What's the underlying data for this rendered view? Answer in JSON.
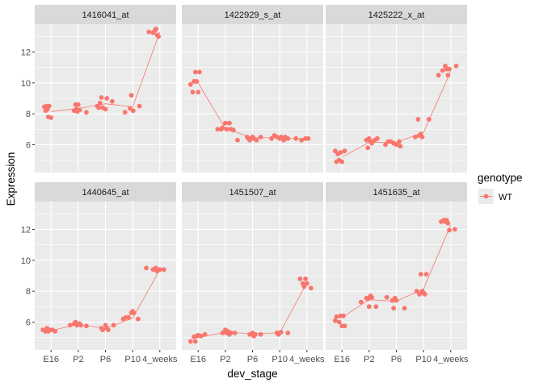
{
  "chart_data": {
    "type": "scatter",
    "xlabel": "dev_stage",
    "ylabel": "Expression",
    "categories": [
      "E16",
      "P2",
      "P6",
      "P10",
      "4_weeks"
    ],
    "ylim": [
      4.2,
      13.8
    ],
    "yticks": [
      6,
      8,
      10,
      12
    ],
    "grid": true,
    "legend": {
      "title": "genotype",
      "position": "right",
      "entries": [
        "WT"
      ]
    },
    "colors": {
      "series": "#F8766D",
      "panel_bg": "#EBEBEB",
      "strip_bg": "#D9D9D9",
      "grid": "#FFFFFF"
    },
    "series": [
      {
        "name": "WT"
      }
    ],
    "facets": [
      {
        "probe": "1416041_at",
        "means": [
          8.15,
          8.35,
          8.65,
          8.45,
          13.3
        ],
        "points": [
          [
            0.75,
            8.45
          ],
          [
            0.8,
            8.2
          ],
          [
            0.83,
            8.5
          ],
          [
            0.87,
            8.3
          ],
          [
            0.9,
            7.8
          ],
          [
            0.93,
            8.5
          ],
          [
            1.0,
            7.75
          ],
          [
            1.85,
            8.2
          ],
          [
            1.9,
            8.6
          ],
          [
            1.93,
            8.3
          ],
          [
            1.97,
            8.15
          ],
          [
            2.0,
            8.6
          ],
          [
            2.05,
            8.25
          ],
          [
            2.3,
            8.1
          ],
          [
            2.7,
            8.5
          ],
          [
            2.75,
            8.4
          ],
          [
            2.8,
            8.7
          ],
          [
            2.85,
            9.05
          ],
          [
            2.9,
            8.4
          ],
          [
            3.0,
            8.3
          ],
          [
            3.05,
            9.0
          ],
          [
            3.25,
            8.8
          ],
          [
            3.72,
            8.1
          ],
          [
            3.9,
            8.35
          ],
          [
            3.95,
            9.2
          ],
          [
            4.02,
            8.2
          ],
          [
            4.25,
            8.5
          ],
          [
            4.6,
            13.3
          ],
          [
            4.75,
            13.25
          ],
          [
            4.82,
            13.4
          ],
          [
            4.86,
            13.5
          ],
          [
            4.9,
            13.1
          ],
          [
            4.95,
            13.0
          ]
        ]
      },
      {
        "probe": "1422929_s_at",
        "means": [
          10.0,
          7.05,
          6.45,
          6.45,
          6.35
        ],
        "points": [
          [
            0.72,
            9.9
          ],
          [
            0.8,
            9.4
          ],
          [
            0.85,
            10.1
          ],
          [
            0.9,
            10.7
          ],
          [
            0.95,
            10.1
          ],
          [
            1.0,
            9.4
          ],
          [
            1.05,
            10.7
          ],
          [
            1.72,
            7.0
          ],
          [
            1.85,
            7.0
          ],
          [
            1.9,
            7.1
          ],
          [
            2.0,
            7.4
          ],
          [
            2.05,
            7.0
          ],
          [
            2.15,
            7.4
          ],
          [
            2.2,
            7.0
          ],
          [
            2.3,
            6.95
          ],
          [
            2.45,
            6.3
          ],
          [
            2.8,
            6.5
          ],
          [
            2.85,
            6.4
          ],
          [
            2.9,
            6.3
          ],
          [
            3.0,
            6.5
          ],
          [
            3.05,
            6.4
          ],
          [
            3.15,
            6.3
          ],
          [
            3.3,
            6.5
          ],
          [
            3.7,
            6.4
          ],
          [
            3.8,
            6.6
          ],
          [
            3.9,
            6.5
          ],
          [
            4.0,
            6.4
          ],
          [
            4.05,
            6.5
          ],
          [
            4.15,
            6.3
          ],
          [
            4.2,
            6.5
          ],
          [
            4.3,
            6.4
          ],
          [
            4.6,
            6.4
          ],
          [
            4.8,
            6.3
          ],
          [
            4.95,
            6.4
          ],
          [
            5.05,
            6.4
          ]
        ]
      },
      {
        "probe": "1425222_x_at",
        "means": [
          5.2,
          6.15,
          6.15,
          6.8,
          10.75
        ],
        "points": [
          [
            0.75,
            5.6
          ],
          [
            0.8,
            4.9
          ],
          [
            0.85,
            5.4
          ],
          [
            0.9,
            5.0
          ],
          [
            0.95,
            5.5
          ],
          [
            1.0,
            4.9
          ],
          [
            1.1,
            5.6
          ],
          [
            1.9,
            6.3
          ],
          [
            1.95,
            5.8
          ],
          [
            2.0,
            6.4
          ],
          [
            2.05,
            6.2
          ],
          [
            2.1,
            6.1
          ],
          [
            2.2,
            6.3
          ],
          [
            2.3,
            6.4
          ],
          [
            2.6,
            6.0
          ],
          [
            2.7,
            6.2
          ],
          [
            2.8,
            6.2
          ],
          [
            2.9,
            6.1
          ],
          [
            3.0,
            6.0
          ],
          [
            3.1,
            6.2
          ],
          [
            3.15,
            5.9
          ],
          [
            3.7,
            6.5
          ],
          [
            3.8,
            7.65
          ],
          [
            3.85,
            6.6
          ],
          [
            3.9,
            6.7
          ],
          [
            3.95,
            6.5
          ],
          [
            4.2,
            7.65
          ],
          [
            4.55,
            10.5
          ],
          [
            4.7,
            10.8
          ],
          [
            4.8,
            11.1
          ],
          [
            4.85,
            10.9
          ],
          [
            4.9,
            10.5
          ],
          [
            4.95,
            10.9
          ],
          [
            5.2,
            11.1
          ]
        ]
      },
      {
        "probe": "1440645_at",
        "means": [
          5.45,
          5.85,
          5.6,
          6.25,
          9.4
        ],
        "points": [
          [
            0.7,
            5.5
          ],
          [
            0.8,
            5.4
          ],
          [
            0.85,
            5.6
          ],
          [
            0.9,
            5.4
          ],
          [
            0.95,
            5.5
          ],
          [
            1.05,
            5.5
          ],
          [
            1.15,
            5.4
          ],
          [
            1.7,
            5.8
          ],
          [
            1.85,
            5.9
          ],
          [
            1.9,
            6.0
          ],
          [
            1.95,
            5.8
          ],
          [
            2.05,
            5.9
          ],
          [
            2.1,
            5.8
          ],
          [
            2.3,
            5.75
          ],
          [
            2.85,
            5.6
          ],
          [
            2.9,
            5.5
          ],
          [
            3.0,
            5.8
          ],
          [
            3.05,
            5.6
          ],
          [
            3.1,
            5.5
          ],
          [
            3.3,
            5.8
          ],
          [
            3.65,
            6.2
          ],
          [
            3.75,
            6.3
          ],
          [
            3.85,
            6.3
          ],
          [
            3.95,
            6.6
          ],
          [
            4.0,
            6.7
          ],
          [
            4.05,
            6.6
          ],
          [
            4.2,
            6.2
          ],
          [
            4.5,
            9.5
          ],
          [
            4.75,
            9.4
          ],
          [
            4.85,
            9.5
          ],
          [
            4.9,
            9.3
          ],
          [
            5.0,
            9.4
          ],
          [
            5.15,
            9.4
          ]
        ]
      },
      {
        "probe": "1451507_at",
        "means": [
          5.0,
          5.35,
          5.25,
          5.3,
          8.55
        ],
        "points": [
          [
            0.72,
            4.75
          ],
          [
            0.85,
            5.05
          ],
          [
            0.9,
            4.75
          ],
          [
            0.95,
            5.1
          ],
          [
            1.0,
            5.15
          ],
          [
            1.1,
            5.1
          ],
          [
            1.25,
            5.2
          ],
          [
            1.9,
            5.3
          ],
          [
            2.0,
            5.5
          ],
          [
            2.05,
            5.3
          ],
          [
            2.1,
            5.4
          ],
          [
            2.15,
            5.2
          ],
          [
            2.2,
            5.3
          ],
          [
            2.35,
            5.3
          ],
          [
            2.9,
            5.2
          ],
          [
            3.0,
            5.3
          ],
          [
            3.05,
            5.1
          ],
          [
            3.1,
            5.2
          ],
          [
            3.3,
            5.2
          ],
          [
            3.9,
            5.3
          ],
          [
            3.95,
            5.2
          ],
          [
            4.0,
            5.3
          ],
          [
            4.05,
            5.35
          ],
          [
            4.3,
            5.3
          ],
          [
            4.75,
            8.8
          ],
          [
            4.85,
            8.5
          ],
          [
            4.9,
            8.3
          ],
          [
            4.95,
            8.8
          ],
          [
            5.0,
            8.5
          ],
          [
            5.15,
            8.2
          ]
        ]
      },
      {
        "probe": "1451635_at",
        "means": [
          6.3,
          7.45,
          7.35,
          8.15,
          12.3
        ],
        "points": [
          [
            0.75,
            6.1
          ],
          [
            0.8,
            6.35
          ],
          [
            0.9,
            6.0
          ],
          [
            0.95,
            6.4
          ],
          [
            1.0,
            5.75
          ],
          [
            1.05,
            6.4
          ],
          [
            1.1,
            5.75
          ],
          [
            1.7,
            7.3
          ],
          [
            1.9,
            7.55
          ],
          [
            1.95,
            7.5
          ],
          [
            2.0,
            7.0
          ],
          [
            2.05,
            7.7
          ],
          [
            2.1,
            7.6
          ],
          [
            2.25,
            7.0
          ],
          [
            2.65,
            7.6
          ],
          [
            2.85,
            7.4
          ],
          [
            2.9,
            6.9
          ],
          [
            2.95,
            7.55
          ],
          [
            3.0,
            7.4
          ],
          [
            3.3,
            6.9
          ],
          [
            3.75,
            8.0
          ],
          [
            3.85,
            7.8
          ],
          [
            3.9,
            9.1
          ],
          [
            3.95,
            8.0
          ],
          [
            4.0,
            7.9
          ],
          [
            4.05,
            7.8
          ],
          [
            4.1,
            9.1
          ],
          [
            4.65,
            12.5
          ],
          [
            4.75,
            12.6
          ],
          [
            4.8,
            12.5
          ],
          [
            4.85,
            12.6
          ],
          [
            4.9,
            12.4
          ],
          [
            4.95,
            11.95
          ],
          [
            5.15,
            12.0
          ]
        ]
      }
    ]
  }
}
